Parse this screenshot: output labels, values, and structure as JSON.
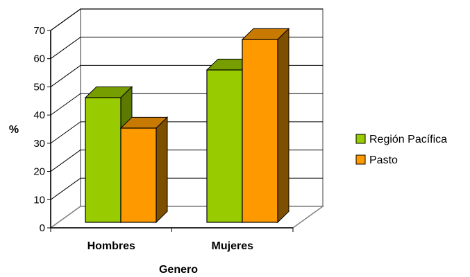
{
  "chart_data": {
    "type": "bar",
    "categories": [
      "Hombres",
      "Mujeres"
    ],
    "series": [
      {
        "name": "Región Pacífica",
        "values": [
          45,
          55
        ],
        "color": "#99cc00",
        "top_color": "#779e00",
        "side_color": "#5c7a00"
      },
      {
        "name": "Pasto",
        "values": [
          34,
          66
        ],
        "color": "#ff9900",
        "top_color": "#c87a00",
        "side_color": "#7f4f00"
      }
    ],
    "xlabel": "Genero",
    "ylabel": "%",
    "ylim": [
      0,
      70
    ],
    "yticks": [
      0,
      10,
      20,
      30,
      40,
      50,
      60,
      70
    ],
    "grid": true,
    "legend_position": "right",
    "style": "3d-clustered-column"
  }
}
